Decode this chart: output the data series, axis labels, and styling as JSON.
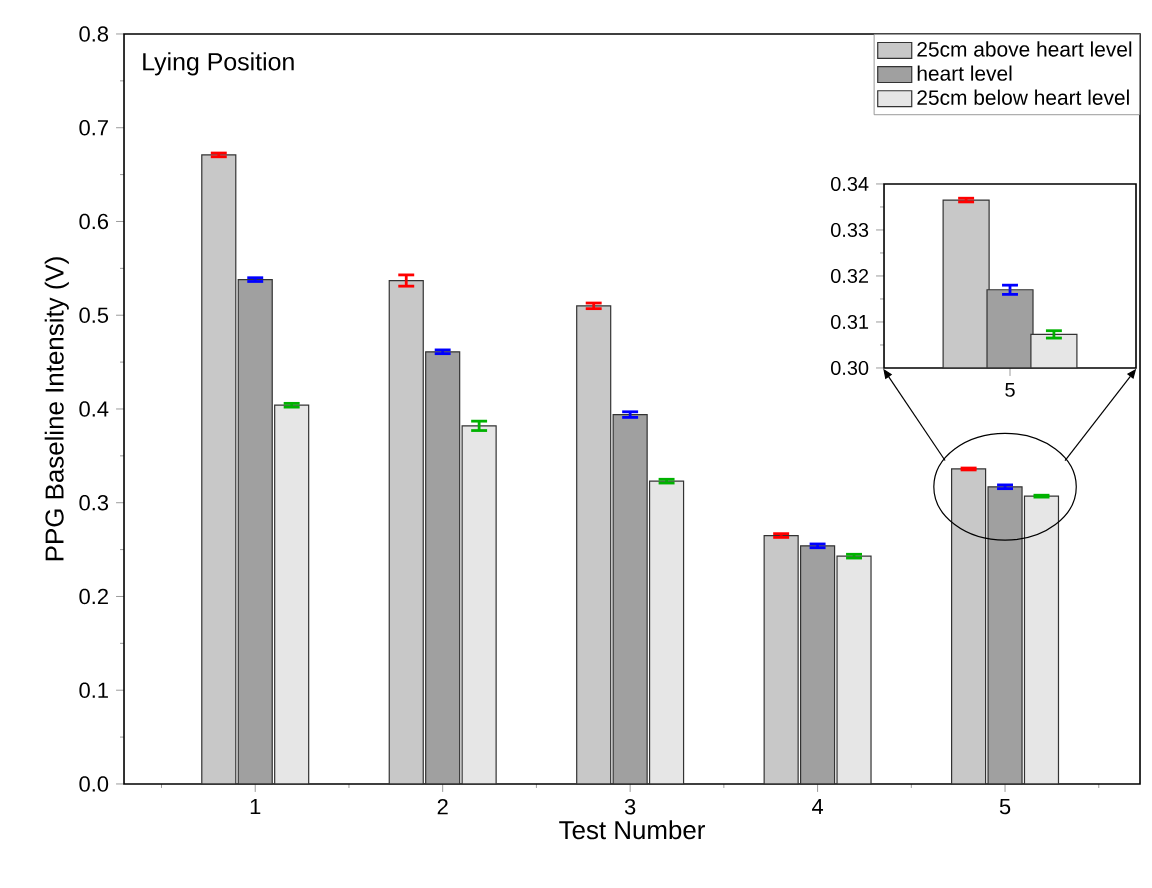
{
  "chart_data": [
    {
      "type": "bar",
      "title": "Lying Position",
      "xlabel": "Test Number",
      "ylabel": "PPG Baseline Intensity (V)",
      "categories": [
        "1",
        "2",
        "3",
        "4",
        "5"
      ],
      "series": [
        {
          "name": "25cm above heart level",
          "color": "#c8c8c8",
          "values": [
            0.671,
            0.537,
            0.51,
            0.265,
            0.336
          ],
          "errors": [
            0.002,
            0.006,
            0.003,
            0.002,
            0.001
          ]
        },
        {
          "name": "heart level",
          "color": "#a0a0a0",
          "values": [
            0.538,
            0.461,
            0.394,
            0.254,
            0.317
          ],
          "errors": [
            0.002,
            0.002,
            0.003,
            0.002,
            0.002
          ]
        },
        {
          "name": "25cm below heart level",
          "color": "#e6e6e6",
          "values": [
            0.404,
            0.382,
            0.323,
            0.243,
            0.307
          ],
          "errors": [
            0.002,
            0.005,
            0.002,
            0.002,
            0.001
          ]
        }
      ],
      "ylim": [
        0,
        0.8
      ],
      "yticks": [
        {
          "value": 0,
          "label": "0.0"
        },
        0.1,
        0.2,
        0.3,
        0.4,
        0.5,
        0.6,
        0.7,
        0.8
      ],
      "legend": "top right"
    },
    {
      "type": "bar",
      "categories": [
        "5"
      ],
      "series": [
        {
          "color": "#c8c8c8",
          "values": [
            0.3365
          ],
          "errors": [
            0.0004
          ]
        },
        {
          "color": "#a0a0a0",
          "values": [
            0.317
          ],
          "errors": [
            0.001
          ]
        },
        {
          "color": "#e6e6e6",
          "values": [
            0.3073
          ],
          "errors": [
            0.0008
          ]
        }
      ],
      "ylim": [
        0.3,
        0.34
      ],
      "yticks": [
        {
          "value": 0.3,
          "label": "0.30"
        },
        0.31,
        0.32,
        0.33,
        0.34
      ]
    }
  ]
}
